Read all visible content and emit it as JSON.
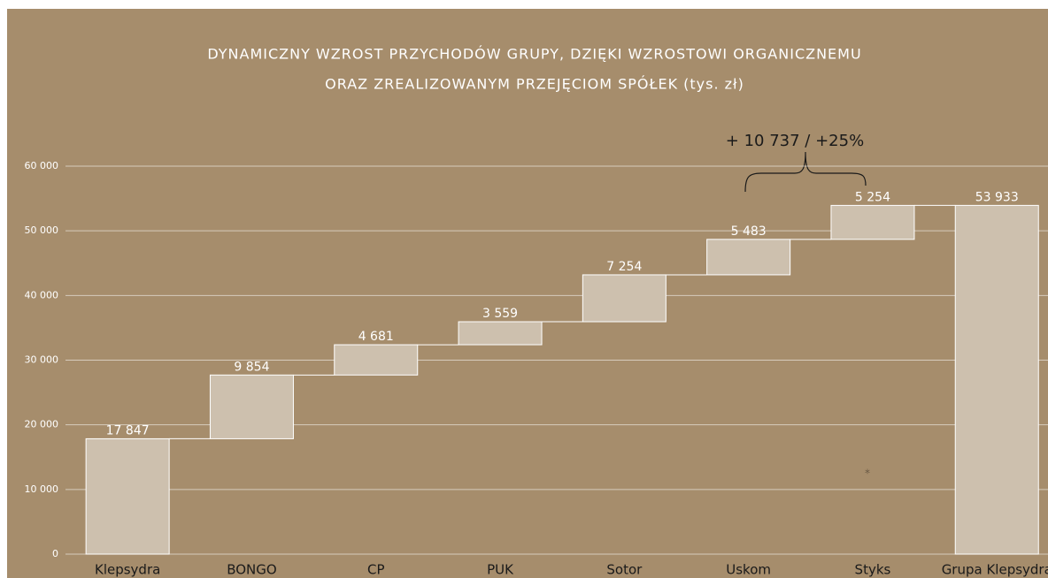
{
  "chart_data": {
    "type": "waterfall",
    "title": [
      "DYNAMICZNY WZROST PRZYCHODÓW GRUPY, DZIĘKI WZROSTOWI ORGANICZNEMU",
      "ORAZ ZREALIZOWANYM PRZEJĘCIOM SPÓŁEK (tys. zł)"
    ],
    "categories": [
      "Klepsydra",
      "BONGO",
      "CP",
      "PUK",
      "Sotor",
      "Uskom",
      "Styks",
      "Grupa Klepsydra"
    ],
    "values": [
      17847,
      9854,
      4681,
      3559,
      7254,
      5483,
      5254,
      53933
    ],
    "value_labels": [
      "17 847",
      "9 854",
      "4 681",
      "3 559",
      "7 254",
      "5 483",
      "5 254",
      "53 933"
    ],
    "total": [
      false,
      false,
      false,
      false,
      false,
      false,
      false,
      true
    ],
    "color": "#cdc0ae",
    "ylim": [
      0,
      60000
    ],
    "yticks": [
      0,
      {
        "value": 10000,
        "label": "10 000"
      },
      {
        "value": 20000,
        "label": "20 000"
      },
      {
        "value": 30000,
        "label": "30 000"
      },
      {
        "value": 40000,
        "label": "40 000"
      },
      {
        "value": 50000,
        "label": "50 000"
      },
      {
        "value": 60000,
        "label": "60 000"
      }
    ],
    "grid": true,
    "annotations": [
      "+ 10 737 / +25%",
      "*"
    ]
  }
}
